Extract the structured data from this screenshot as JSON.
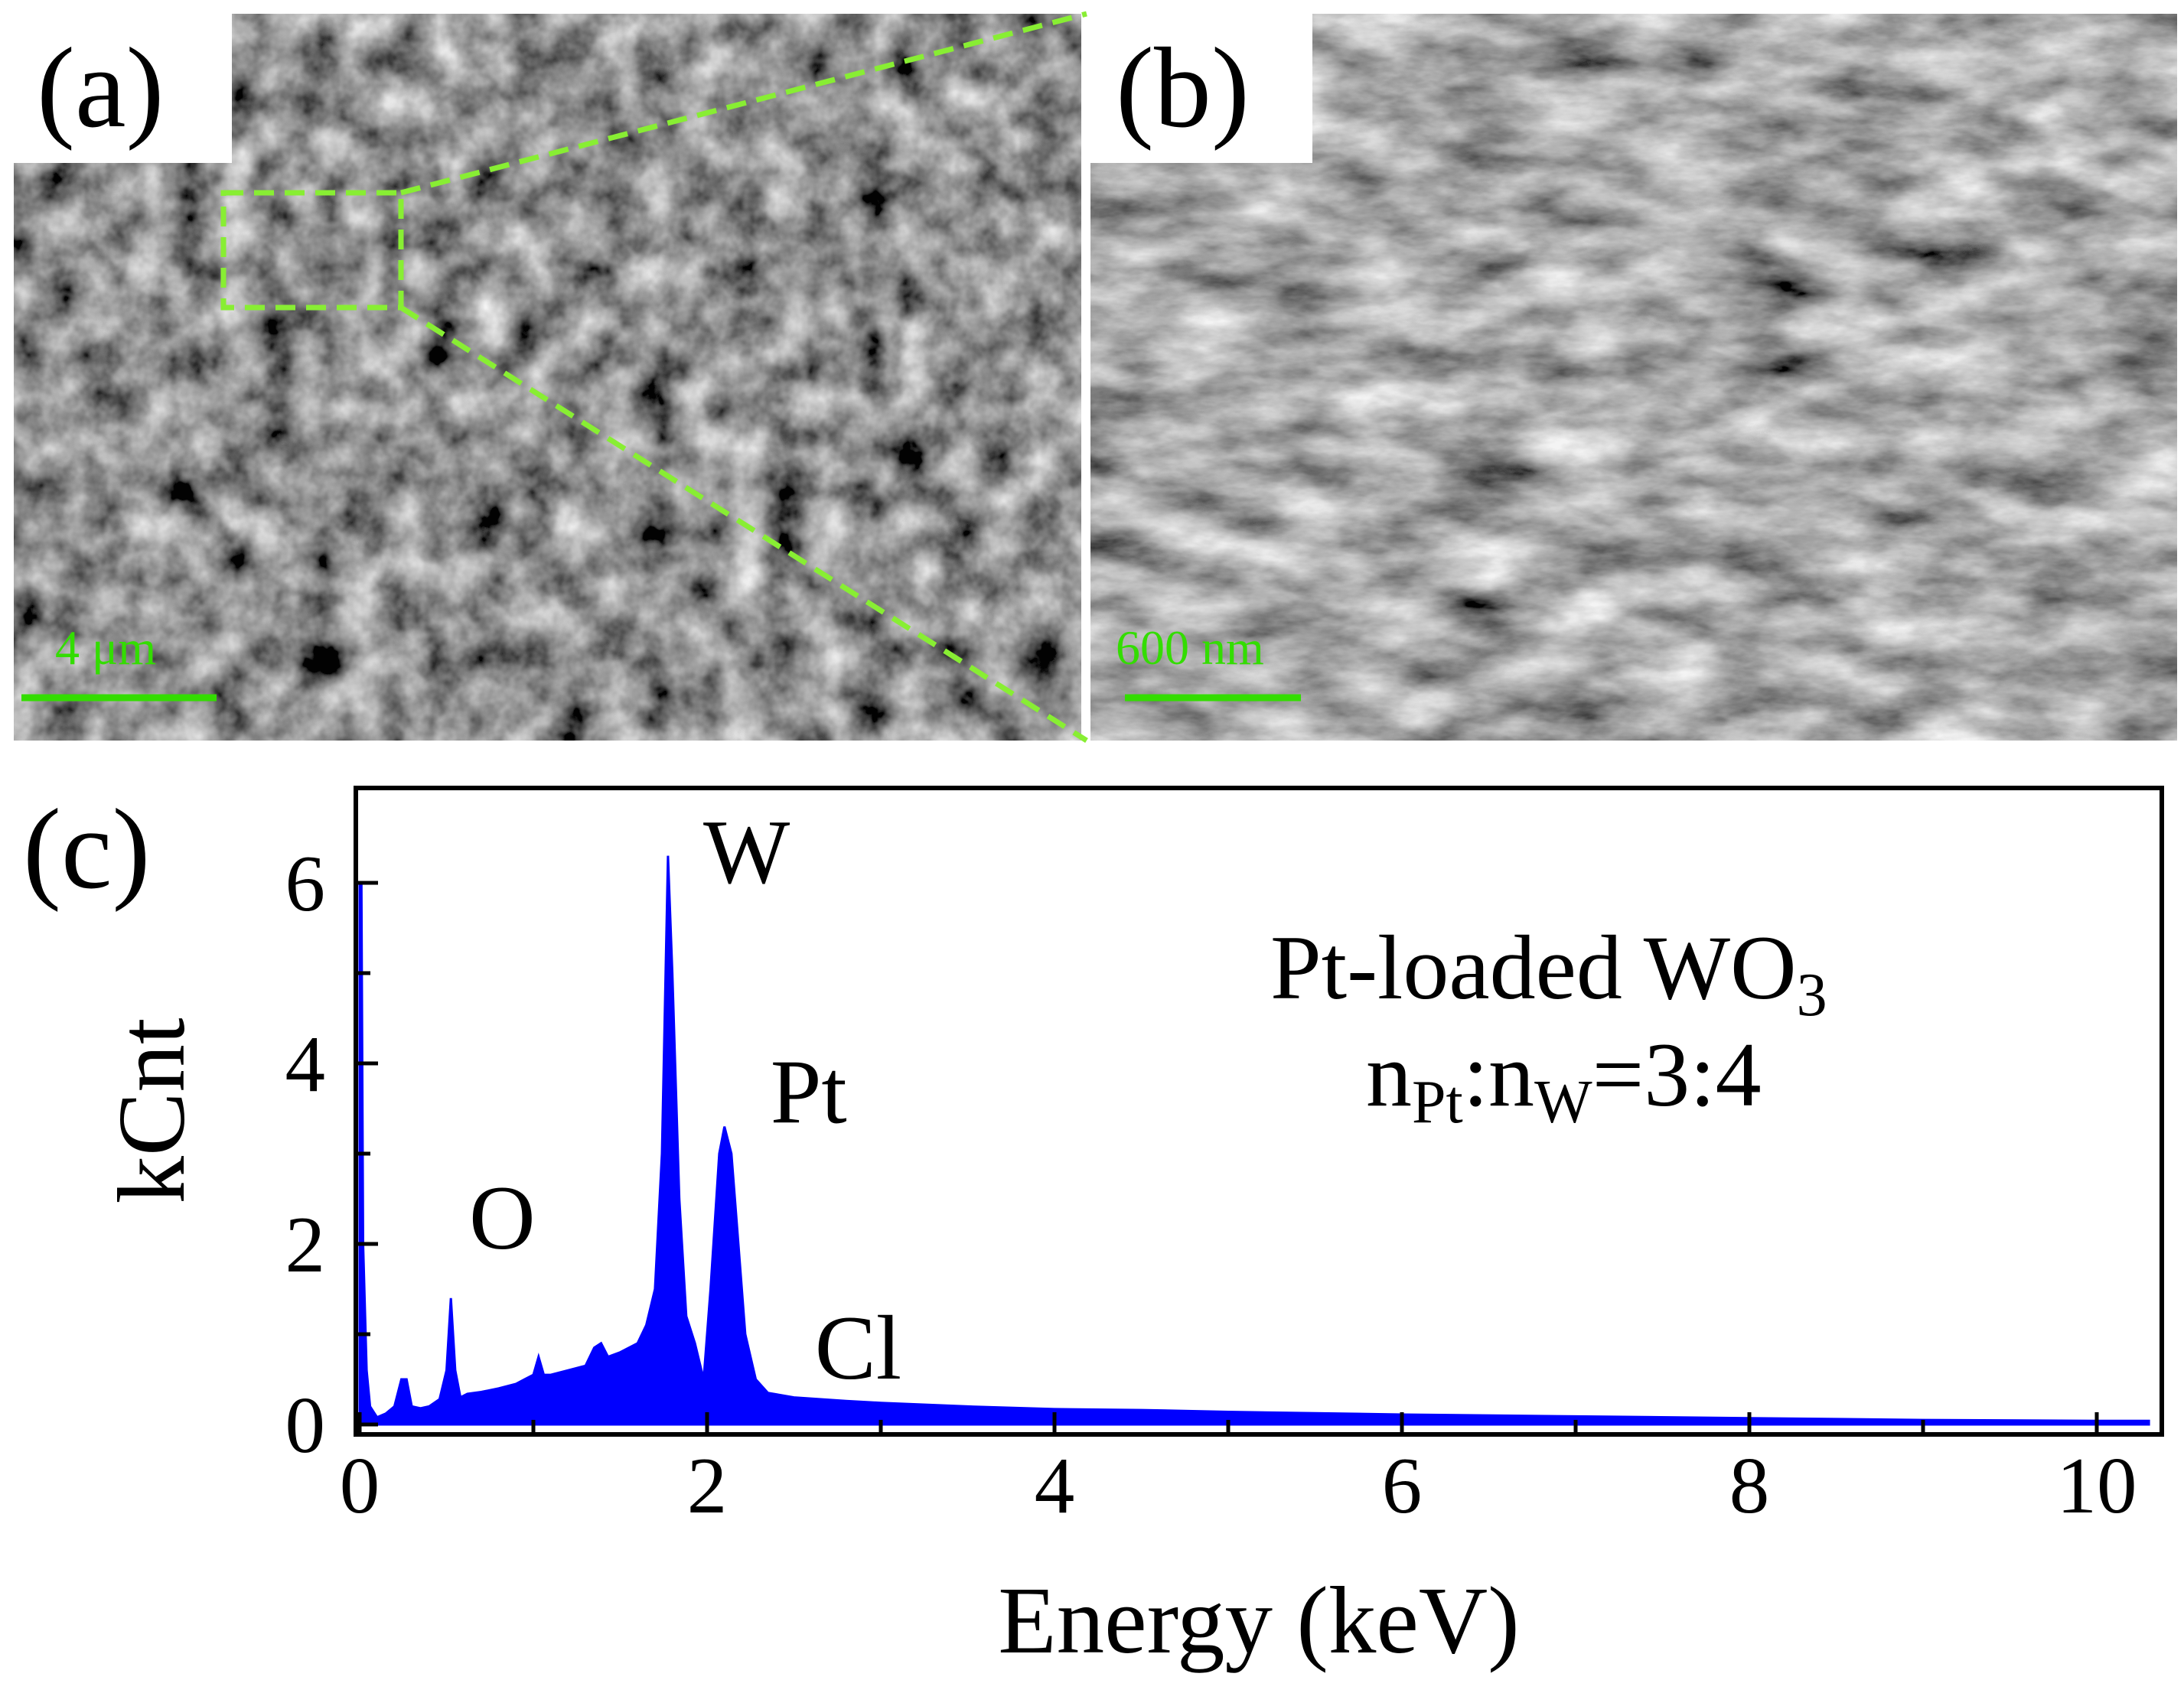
{
  "panels": {
    "a": {
      "label": "(a)",
      "scale_bar": "4 μm"
    },
    "b": {
      "label": "(b)",
      "scale_bar": "600 nm"
    },
    "c": {
      "label": "(c)"
    }
  },
  "colors": {
    "spectrum": "#0000ff",
    "scale_bar": "#33dd00",
    "zoom_guides": "#88ee33",
    "axes": "#000000",
    "sem_background": "#2a2a2a"
  },
  "chart_data": {
    "type": "area",
    "title": "",
    "xlabel": "Energy (keV)",
    "ylabel": "kCnt",
    "xlim": [
      0,
      10.5
    ],
    "ylim": [
      0,
      7
    ],
    "xticks": [
      0,
      2,
      4,
      6,
      8,
      10
    ],
    "yticks": [
      0,
      2,
      4,
      6
    ],
    "grid": false,
    "annotations": [
      {
        "text": "W",
        "x": 1.78,
        "y": 6.3
      },
      {
        "text": "Pt",
        "x": 2.1,
        "y": 3.3
      },
      {
        "text": "O",
        "x": 0.52,
        "y": 1.4
      },
      {
        "text": "Cl",
        "x": 2.62,
        "y": 0.55
      }
    ],
    "series": [
      {
        "x": [
          0.0,
          0.01,
          0.02,
          0.04,
          0.06,
          0.1,
          0.15,
          0.2,
          0.24,
          0.27,
          0.3,
          0.35,
          0.4,
          0.46,
          0.5,
          0.525,
          0.55,
          0.58,
          0.62,
          0.7,
          0.8,
          0.9,
          0.95,
          1.0,
          1.03,
          1.06,
          1.1,
          1.2,
          1.3,
          1.35,
          1.39,
          1.43,
          1.5,
          1.6,
          1.65,
          1.7,
          1.74,
          1.775,
          1.8,
          1.84,
          1.88,
          1.93,
          1.98,
          2.02,
          2.07,
          2.1,
          2.14,
          2.18,
          2.22,
          2.28,
          2.35,
          2.5,
          2.8,
          3.0,
          3.5,
          4.0,
          4.5,
          5.0,
          6.0,
          7.0,
          8.0,
          9.0,
          10.0,
          10.3
        ],
        "y": [
          6.0,
          6.0,
          2.0,
          0.6,
          0.2,
          0.08,
          0.12,
          0.2,
          0.5,
          0.5,
          0.2,
          0.18,
          0.2,
          0.28,
          0.6,
          1.4,
          0.6,
          0.3,
          0.34,
          0.36,
          0.4,
          0.45,
          0.5,
          0.55,
          0.75,
          0.55,
          0.55,
          0.6,
          0.65,
          0.85,
          0.9,
          0.75,
          0.8,
          0.9,
          1.1,
          1.5,
          3.0,
          6.3,
          5.0,
          2.5,
          1.2,
          0.9,
          0.5,
          1.5,
          3.0,
          3.3,
          3.0,
          2.0,
          1.0,
          0.5,
          0.35,
          0.3,
          0.26,
          0.24,
          0.2,
          0.17,
          0.16,
          0.14,
          0.11,
          0.09,
          0.07,
          0.05,
          0.04,
          0.04
        ]
      }
    ]
  },
  "annotations_text": {
    "sample_line1_main": "Pt-loaded WO",
    "sample_line1_sub": "3",
    "ratio_n1": "n",
    "ratio_sub1": "Pt",
    "ratio_colon": ":n",
    "ratio_sub2": "W",
    "ratio_value": "=3:4"
  }
}
